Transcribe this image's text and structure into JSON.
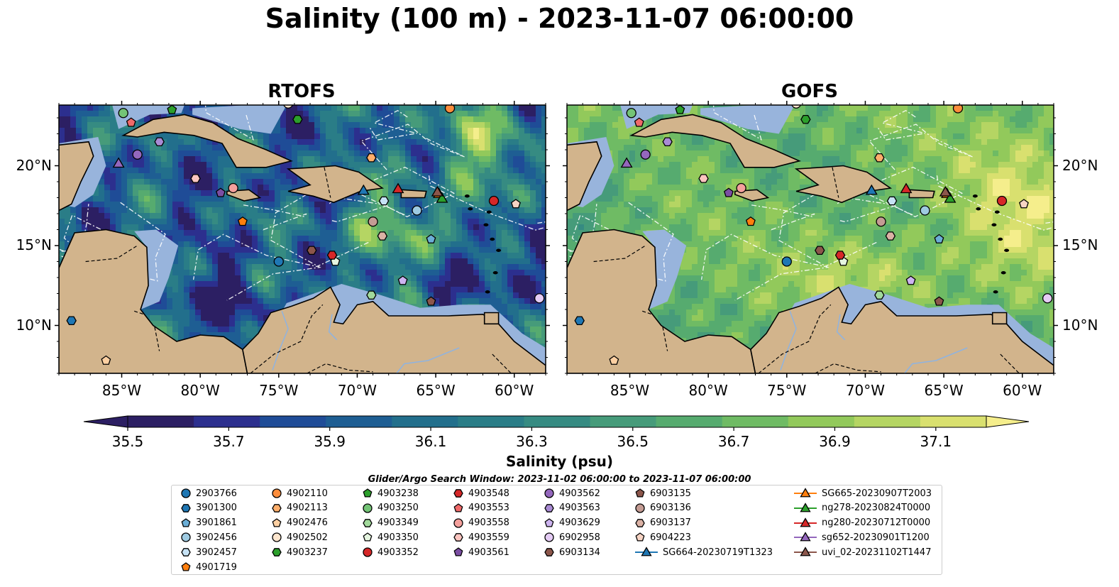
{
  "title": "Salinity (100 m) - 2023-11-07 06:00:00",
  "colors": {
    "land": "#d2b48c",
    "shelf": "#98b4dc",
    "deep_salinity": "#2a1f6a",
    "grid": "#ffffff",
    "colormap": [
      "#2c1f63",
      "#2c2f8e",
      "#1f4c97",
      "#1e5e93",
      "#226f8c",
      "#2a7d87",
      "#368b82",
      "#469b7a",
      "#56ab6f",
      "#6fbb64",
      "#92c95b",
      "#b5d563",
      "#d9e06f",
      "#f5ee8c"
    ]
  },
  "chart_data": [
    {
      "type": "heatmap",
      "title": "RTOFS",
      "x_ticks": [
        "85°W",
        "80°W",
        "75°W",
        "70°W",
        "65°W",
        "60°W"
      ],
      "x_tick_values": [
        -85,
        -80,
        -75,
        -70,
        -65,
        -60
      ],
      "y_ticks": [
        "20°N",
        "15°N",
        "10°N"
      ],
      "y_tick_values": [
        20,
        15,
        10
      ],
      "xlim": [
        -89.0,
        -58.0
      ],
      "ylim": [
        7.0,
        23.8
      ]
    },
    {
      "type": "heatmap",
      "title": "GOFS",
      "x_ticks": [
        "85°W",
        "80°W",
        "75°W",
        "70°W",
        "65°W",
        "60°W"
      ],
      "x_tick_values": [
        -85,
        -80,
        -75,
        -70,
        -65,
        -60
      ],
      "y_ticks": [
        "20°N",
        "15°N",
        "10°N"
      ],
      "y_tick_values": [
        20,
        15,
        10
      ],
      "xlim": [
        -89.0,
        -58.0
      ],
      "ylim": [
        7.0,
        23.8
      ]
    }
  ],
  "colorbar": {
    "label": "Salinity (psu)",
    "ticks": [
      "35.5",
      "35.7",
      "35.9",
      "36.1",
      "36.3",
      "36.5",
      "36.7",
      "36.9",
      "37.1"
    ],
    "tick_values": [
      35.5,
      35.7,
      35.9,
      36.1,
      36.3,
      36.5,
      36.7,
      36.9,
      37.1
    ],
    "range": [
      35.5,
      37.2
    ],
    "extend": "both"
  },
  "legend": {
    "title": "Glider/Argo Search Window: 2023-11-02 06:00:00 to 2023-11-07 06:00:00",
    "columns": [
      [
        {
          "label": "2903766",
          "marker": "circle",
          "color": "#1f77b4"
        },
        {
          "label": "3901300",
          "marker": "hexagon",
          "color": "#1f77b4"
        },
        {
          "label": "3901861",
          "marker": "pentagon",
          "color": "#6baed6"
        },
        {
          "label": "3902456",
          "marker": "circle",
          "color": "#9ecae1"
        },
        {
          "label": "3902457",
          "marker": "hexagon",
          "color": "#c6e2f5"
        },
        {
          "label": "4901719",
          "marker": "pentagon",
          "color": "#ff7f0e"
        }
      ],
      [
        {
          "label": "4902110",
          "marker": "circle",
          "color": "#fd8d3c"
        },
        {
          "label": "4902113",
          "marker": "hexagon",
          "color": "#fdae6b"
        },
        {
          "label": "4902476",
          "marker": "pentagon",
          "color": "#fdd0a2"
        },
        {
          "label": "4902502",
          "marker": "circle",
          "color": "#fee6ce"
        },
        {
          "label": "4903237",
          "marker": "hexagon",
          "color": "#2ca02c"
        }
      ],
      [
        {
          "label": "4903238",
          "marker": "pentagon",
          "color": "#2ca02c"
        },
        {
          "label": "4903250",
          "marker": "circle",
          "color": "#74c476"
        },
        {
          "label": "4903349",
          "marker": "hexagon",
          "color": "#a1d99b"
        },
        {
          "label": "4903350",
          "marker": "pentagon",
          "color": "#e5f5e0"
        },
        {
          "label": "4903352",
          "marker": "circle",
          "color": "#d62728"
        }
      ],
      [
        {
          "label": "4903548",
          "marker": "hexagon",
          "color": "#d62728"
        },
        {
          "label": "4903553",
          "marker": "pentagon",
          "color": "#f06a6a"
        },
        {
          "label": "4903558",
          "marker": "circle",
          "color": "#f4a09c"
        },
        {
          "label": "4903559",
          "marker": "hexagon",
          "color": "#fcc5c0"
        },
        {
          "label": "4903561",
          "marker": "pentagon",
          "color": "#7b4ea3"
        }
      ],
      [
        {
          "label": "4903562",
          "marker": "circle",
          "color": "#9467bd"
        },
        {
          "label": "4903563",
          "marker": "hexagon",
          "color": "#a98bd4"
        },
        {
          "label": "4903629",
          "marker": "pentagon",
          "color": "#cdb4f0"
        },
        {
          "label": "6902958",
          "marker": "circle",
          "color": "#e5ccf5"
        },
        {
          "label": "6903134",
          "marker": "hexagon",
          "color": "#8c564b"
        }
      ],
      [
        {
          "label": "6903135",
          "marker": "pentagon",
          "color": "#8c564b"
        },
        {
          "label": "6903136",
          "marker": "circle",
          "color": "#c49c94"
        },
        {
          "label": "6903137",
          "marker": "hexagon",
          "color": "#dbb2a5"
        },
        {
          "label": "6904223",
          "marker": "pentagon",
          "color": "#f7d4c4"
        },
        {
          "label": "SG664-20230719T1323",
          "marker": "triangle",
          "color": "#1f77b4"
        }
      ],
      [
        {
          "label": "SG665-20230907T2003",
          "marker": "triangle",
          "color": "#ff7f0e"
        },
        {
          "label": "ng278-20230824T0000",
          "marker": "triangle",
          "color": "#2ca02c"
        },
        {
          "label": "ng280-20230712T0000",
          "marker": "triangle",
          "color": "#d62728"
        },
        {
          "label": "sg652-20230901T1200",
          "marker": "triangle",
          "color": "#9467bd"
        },
        {
          "label": "uvi_02-20231102T1447",
          "marker": "triangle",
          "color": "#8c564b"
        }
      ]
    ]
  },
  "platforms": [
    {
      "id": "2903766",
      "lon": -75.0,
      "lat": 14.0
    },
    {
      "id": "3901300",
      "lon": -88.2,
      "lat": 10.3
    },
    {
      "id": "3901861",
      "lon": -65.3,
      "lat": 15.4
    },
    {
      "id": "3902456",
      "lon": -66.2,
      "lat": 17.2
    },
    {
      "id": "3902457",
      "lon": -68.3,
      "lat": 17.8
    },
    {
      "id": "4901719",
      "lon": -77.3,
      "lat": 16.5
    },
    {
      "id": "4902110",
      "lon": -64.1,
      "lat": 23.6
    },
    {
      "id": "4902113",
      "lon": -69.1,
      "lat": 20.5
    },
    {
      "id": "4902476",
      "lon": -86.0,
      "lat": 7.8
    },
    {
      "id": "4902502",
      "lon": -74.4,
      "lat": 23.9
    },
    {
      "id": "4903237",
      "lon": -73.8,
      "lat": 22.9
    },
    {
      "id": "4903238",
      "lon": -81.8,
      "lat": 23.5
    },
    {
      "id": "4903250",
      "lon": -84.9,
      "lat": 23.3
    },
    {
      "id": "4903349",
      "lon": -69.1,
      "lat": 11.9
    },
    {
      "id": "4903350",
      "lon": -71.4,
      "lat": 14.0
    },
    {
      "id": "4903352",
      "lon": -61.3,
      "lat": 17.8
    },
    {
      "id": "4903548",
      "lon": -71.6,
      "lat": 14.4
    },
    {
      "id": "4903553",
      "lon": -84.4,
      "lat": 22.7
    },
    {
      "id": "4903558",
      "lon": -77.9,
      "lat": 18.6
    },
    {
      "id": "4903559",
      "lon": -80.3,
      "lat": 19.2
    },
    {
      "id": "4903561",
      "lon": -78.7,
      "lat": 18.3
    },
    {
      "id": "4903562",
      "lon": -84.0,
      "lat": 20.7
    },
    {
      "id": "4903563",
      "lon": -82.6,
      "lat": 21.5
    },
    {
      "id": "4903629",
      "lon": -67.1,
      "lat": 12.8
    },
    {
      "id": "6902958",
      "lon": -58.4,
      "lat": 11.7
    },
    {
      "id": "6903134",
      "lon": -72.9,
      "lat": 14.7
    },
    {
      "id": "6903135",
      "lon": -65.3,
      "lat": 11.5
    },
    {
      "id": "6903136",
      "lon": -69.0,
      "lat": 16.5
    },
    {
      "id": "6903137",
      "lon": -68.4,
      "lat": 15.6
    },
    {
      "id": "6904223",
      "lon": -59.9,
      "lat": 17.6
    },
    {
      "id": "SG664-20230719T1323",
      "lon": -69.6,
      "lat": 18.4
    },
    {
      "id": "SG665-20230907T2003",
      "lon": -64.8,
      "lat": 18.2
    },
    {
      "id": "ng278-20230824T0000",
      "lon": -64.6,
      "lat": 17.9
    },
    {
      "id": "ng280-20230712T0000",
      "lon": -67.4,
      "lat": 18.5
    },
    {
      "id": "sg652-20230901T1200",
      "lon": -85.2,
      "lat": 20.1
    },
    {
      "id": "uvi_02-20231102T1447",
      "lon": -64.9,
      "lat": 18.3
    }
  ]
}
